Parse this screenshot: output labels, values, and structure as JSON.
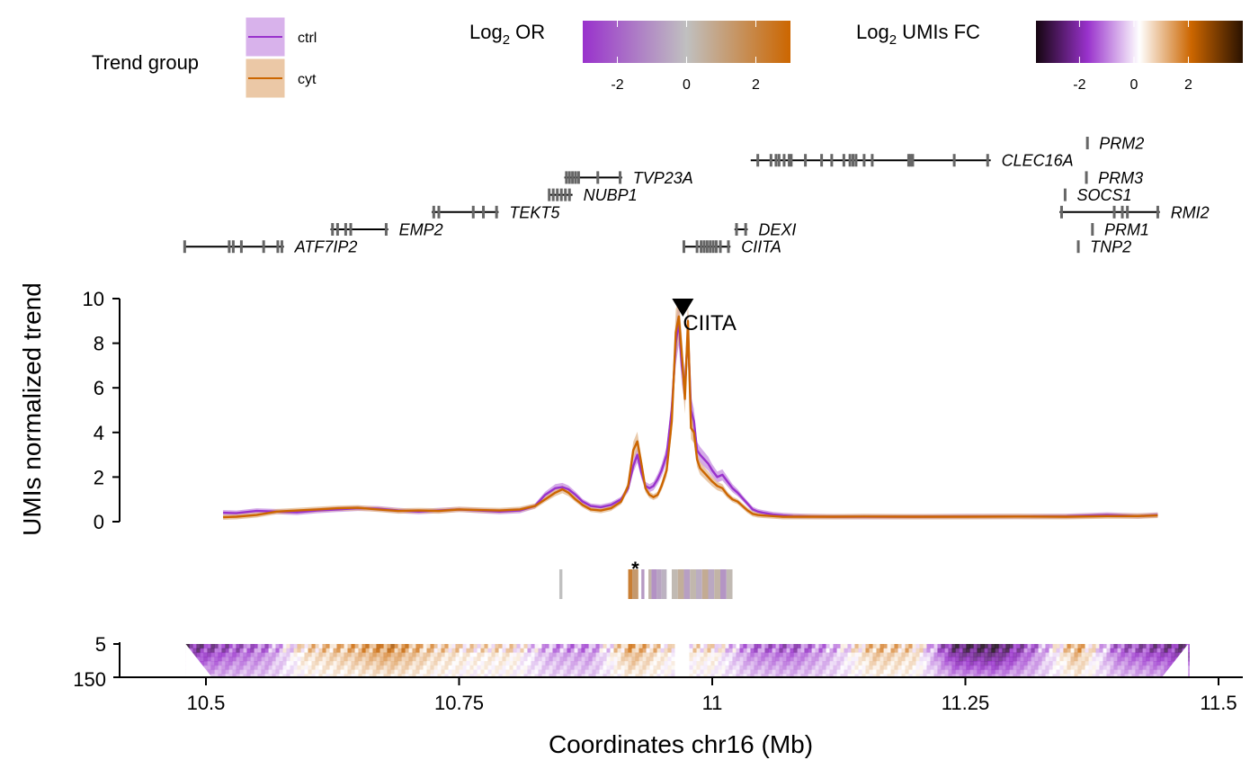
{
  "chart_data": {
    "type": "line",
    "xlabel": "Coordinates chr16 (Mb)",
    "ylabel": "UMIs normalized trend",
    "xlim": [
      10.43,
      11.52
    ],
    "x_ticks": [
      "10.5",
      "10.75",
      "11",
      "11.25",
      "11.5"
    ],
    "x_tick_values": [
      10.5,
      10.75,
      11.0,
      11.25,
      11.5
    ],
    "ylim": [
      0,
      10
    ],
    "y_ticks": [
      "0",
      "2",
      "4",
      "6",
      "8",
      "10"
    ],
    "hic_ylim_labels": [
      "5",
      "150"
    ],
    "viewpoint": {
      "label": "CIITA",
      "x": 10.971
    },
    "colors": {
      "ctrl": "#9932CC",
      "cyt": "#CC6600",
      "neutral": "#c0c0c0"
    },
    "legend": {
      "title": "Trend group",
      "entries": [
        "ctrl",
        "cyt"
      ]
    },
    "colorbars": [
      {
        "title_main": "Log",
        "title_sub": "2",
        "title_rest": " OR",
        "ticks": [
          "-2",
          "0",
          "2"
        ],
        "tick_values": [
          -2,
          0,
          2
        ],
        "range": [
          -3,
          3
        ],
        "stops": [
          "#9932CC",
          "#c0c0c0",
          "#CC6600"
        ]
      },
      {
        "title_main": "Log",
        "title_sub": "2",
        "title_rest": " UMIs FC",
        "ticks": [
          "-2",
          "0",
          "2"
        ],
        "tick_values": [
          -2,
          0,
          2
        ],
        "range": [
          -3.6,
          4
        ],
        "stops": [
          "#150510",
          "#9932CC",
          "#ffffff",
          "#CC6600",
          "#2a1200"
        ]
      }
    ],
    "genes": [
      {
        "name": "PRM2",
        "start": 11.3695,
        "end": 11.3715,
        "row": 0,
        "exons": [
          11.3705
        ]
      },
      {
        "name": "CLEC16A",
        "start": 11.038,
        "end": 11.275,
        "row": 1,
        "exons": [
          11.045,
          11.058,
          11.063,
          11.066,
          11.071,
          11.076,
          11.078,
          11.092,
          11.108,
          11.118,
          11.13,
          11.136,
          11.139,
          11.142,
          11.15,
          11.158,
          11.194,
          11.196,
          11.198,
          11.239,
          11.272
        ]
      },
      {
        "name": "TVP23A",
        "start": 10.854,
        "end": 10.911,
        "row": 2,
        "exons": [
          10.856,
          10.859,
          10.862,
          10.865,
          10.868,
          10.887,
          10.909
        ]
      },
      {
        "name": "PRM3",
        "start": 11.3685,
        "end": 11.3705,
        "row": 2,
        "exons": [
          11.3695
        ]
      },
      {
        "name": "NUBP1",
        "start": 10.838,
        "end": 10.862,
        "row": 3,
        "exons": [
          10.839,
          10.843,
          10.847,
          10.851,
          10.855,
          10.859
        ]
      },
      {
        "name": "SOCS1",
        "start": 11.3475,
        "end": 11.3495,
        "row": 3,
        "exons": [
          11.3485
        ]
      },
      {
        "name": "TEKT5",
        "start": 10.723,
        "end": 10.789,
        "row": 4,
        "exons": [
          10.725,
          10.73,
          10.764,
          10.774,
          10.787
        ]
      },
      {
        "name": "RMI2",
        "start": 11.343,
        "end": 11.442,
        "row": 4,
        "exons": [
          11.345,
          11.397,
          11.405,
          11.41,
          11.44
        ]
      },
      {
        "name": "EMP2",
        "start": 10.623,
        "end": 10.68,
        "row": 5,
        "exons": [
          10.625,
          10.63,
          10.638,
          10.643,
          10.678
        ]
      },
      {
        "name": "DEXI",
        "start": 11.022,
        "end": 11.035,
        "row": 5,
        "exons": [
          11.024,
          11.033
        ]
      },
      {
        "name": "PRM1",
        "start": 11.3745,
        "end": 11.3765,
        "row": 5,
        "exons": [
          11.3755
        ]
      },
      {
        "name": "ATF7IP2",
        "start": 10.478,
        "end": 10.577,
        "row": 6,
        "exons": [
          10.479,
          10.523,
          10.527,
          10.535,
          10.557,
          10.571,
          10.575
        ]
      },
      {
        "name": "CIITA",
        "start": 10.971,
        "end": 11.018,
        "row": 6,
        "exons": [
          10.972,
          10.985,
          10.989,
          10.992,
          10.995,
          10.998,
          11.001,
          11.004,
          11.008,
          11.016
        ]
      },
      {
        "name": "TNP2",
        "start": 11.3605,
        "end": 11.3625,
        "row": 6,
        "exons": [
          11.3615
        ]
      }
    ],
    "series": [
      {
        "name": "ctrl",
        "x": [
          10.517,
          10.53,
          10.55,
          10.57,
          10.59,
          10.61,
          10.63,
          10.65,
          10.67,
          10.69,
          10.71,
          10.73,
          10.75,
          10.77,
          10.79,
          10.81,
          10.825,
          10.835,
          10.845,
          10.852,
          10.858,
          10.865,
          10.872,
          10.88,
          10.89,
          10.9,
          10.91,
          10.917,
          10.922,
          10.926,
          10.93,
          10.934,
          10.938,
          10.942,
          10.946,
          10.95,
          10.955,
          10.96,
          10.964,
          10.967,
          10.97,
          10.973,
          10.976,
          10.979,
          10.982,
          10.985,
          10.988,
          10.992,
          10.996,
          11.0,
          11.005,
          11.01,
          11.015,
          11.02,
          11.025,
          11.03,
          11.035,
          11.04,
          11.045,
          11.05,
          11.06,
          11.07,
          11.08,
          11.1,
          11.12,
          11.15,
          11.2,
          11.25,
          11.3,
          11.35,
          11.39,
          11.42,
          11.44
        ],
        "values": [
          0.4,
          0.38,
          0.48,
          0.45,
          0.42,
          0.5,
          0.55,
          0.6,
          0.58,
          0.5,
          0.45,
          0.5,
          0.55,
          0.5,
          0.45,
          0.5,
          0.7,
          1.2,
          1.5,
          1.55,
          1.45,
          1.2,
          0.9,
          0.7,
          0.65,
          0.75,
          1.0,
          1.5,
          2.5,
          3.0,
          2.2,
          1.6,
          1.5,
          1.6,
          1.9,
          2.3,
          3.0,
          5.0,
          8.0,
          9.0,
          7.0,
          6.0,
          8.5,
          5.0,
          4.5,
          3.2,
          3.0,
          2.8,
          2.6,
          2.3,
          2.0,
          2.1,
          1.8,
          1.5,
          1.3,
          1.05,
          0.8,
          0.55,
          0.45,
          0.4,
          0.32,
          0.28,
          0.25,
          0.23,
          0.22,
          0.22,
          0.22,
          0.23,
          0.23,
          0.24,
          0.3,
          0.25,
          0.3
        ]
      },
      {
        "name": "cyt",
        "x": [
          10.517,
          10.53,
          10.55,
          10.57,
          10.59,
          10.61,
          10.63,
          10.65,
          10.67,
          10.69,
          10.71,
          10.73,
          10.75,
          10.77,
          10.79,
          10.81,
          10.825,
          10.835,
          10.845,
          10.852,
          10.858,
          10.865,
          10.872,
          10.88,
          10.89,
          10.9,
          10.91,
          10.917,
          10.922,
          10.926,
          10.93,
          10.934,
          10.938,
          10.942,
          10.946,
          10.95,
          10.955,
          10.96,
          10.964,
          10.967,
          10.97,
          10.973,
          10.976,
          10.979,
          10.982,
          10.985,
          10.988,
          10.992,
          10.996,
          11.0,
          11.005,
          11.01,
          11.015,
          11.02,
          11.025,
          11.03,
          11.035,
          11.04,
          11.045,
          11.05,
          11.06,
          11.07,
          11.08,
          11.1,
          11.12,
          11.15,
          11.2,
          11.25,
          11.3,
          11.35,
          11.39,
          11.42,
          11.44
        ],
        "values": [
          0.2,
          0.22,
          0.3,
          0.45,
          0.5,
          0.55,
          0.6,
          0.62,
          0.55,
          0.48,
          0.5,
          0.48,
          0.55,
          0.52,
          0.5,
          0.55,
          0.7,
          1.0,
          1.3,
          1.45,
          1.3,
          1.0,
          0.75,
          0.55,
          0.5,
          0.6,
          0.9,
          1.6,
          3.2,
          3.6,
          2.6,
          1.5,
          1.2,
          1.1,
          1.2,
          1.6,
          2.3,
          4.5,
          8.5,
          9.2,
          7.5,
          5.5,
          9.0,
          4.2,
          4.0,
          2.8,
          2.4,
          2.2,
          2.0,
          1.8,
          1.6,
          1.5,
          1.2,
          1.0,
          0.9,
          0.7,
          0.5,
          0.35,
          0.3,
          0.28,
          0.25,
          0.22,
          0.22,
          0.22,
          0.22,
          0.23,
          0.22,
          0.22,
          0.23,
          0.22,
          0.25,
          0.25,
          0.28
        ]
      }
    ],
    "or_bins": [
      {
        "x0": 10.849,
        "x1": 10.852,
        "log2or": 0
      },
      {
        "x0": 10.917,
        "x1": 10.921,
        "log2or": 2.2
      },
      {
        "x0": 10.921,
        "x1": 10.927,
        "log2or": 1.3,
        "significant": true
      },
      {
        "x0": 10.93,
        "x1": 10.933,
        "log2or": -0.8
      },
      {
        "x0": 10.937,
        "x1": 10.94,
        "log2or": 0.4
      },
      {
        "x0": 10.94,
        "x1": 10.945,
        "log2or": -1.0
      },
      {
        "x0": 10.945,
        "x1": 10.95,
        "log2or": -0.6
      },
      {
        "x0": 10.95,
        "x1": 10.955,
        "log2or": -0.3
      },
      {
        "x0": 10.96,
        "x1": 10.966,
        "log2or": 0.2
      },
      {
        "x0": 10.966,
        "x1": 10.972,
        "log2or": 0.6
      },
      {
        "x0": 10.972,
        "x1": 10.978,
        "log2or": -0.7
      },
      {
        "x0": 10.978,
        "x1": 10.984,
        "log2or": 0.3
      },
      {
        "x0": 10.984,
        "x1": 10.99,
        "log2or": -0.4
      },
      {
        "x0": 10.99,
        "x1": 10.996,
        "log2or": 0.7
      },
      {
        "x0": 10.996,
        "x1": 11.002,
        "log2or": -0.5
      },
      {
        "x0": 11.002,
        "x1": 11.008,
        "log2or": 0.4
      },
      {
        "x0": 11.008,
        "x1": 11.014,
        "log2or": -0.9
      },
      {
        "x0": 11.014,
        "x1": 11.02,
        "log2or": 0.2
      }
    ],
    "hic_fc_profile": {
      "x": [
        10.48,
        10.52,
        10.56,
        10.6,
        10.64,
        10.68,
        10.72,
        10.76,
        10.8,
        10.84,
        10.88,
        10.92,
        10.96,
        11.0,
        11.04,
        11.08,
        11.12,
        11.16,
        11.2,
        11.24,
        11.28,
        11.32,
        11.36,
        11.4,
        11.44,
        11.47
      ],
      "fc": [
        -2.5,
        -1.8,
        -1.2,
        0.8,
        1.2,
        1.8,
        1.0,
        0.5,
        0.6,
        -0.8,
        -1.0,
        1.5,
        0.3,
        0.5,
        -1.3,
        -1.6,
        -0.6,
        1.2,
        0.8,
        -2.8,
        -3.2,
        -1.2,
        1.5,
        -1.5,
        -2.2,
        -2.5
      ]
    }
  }
}
